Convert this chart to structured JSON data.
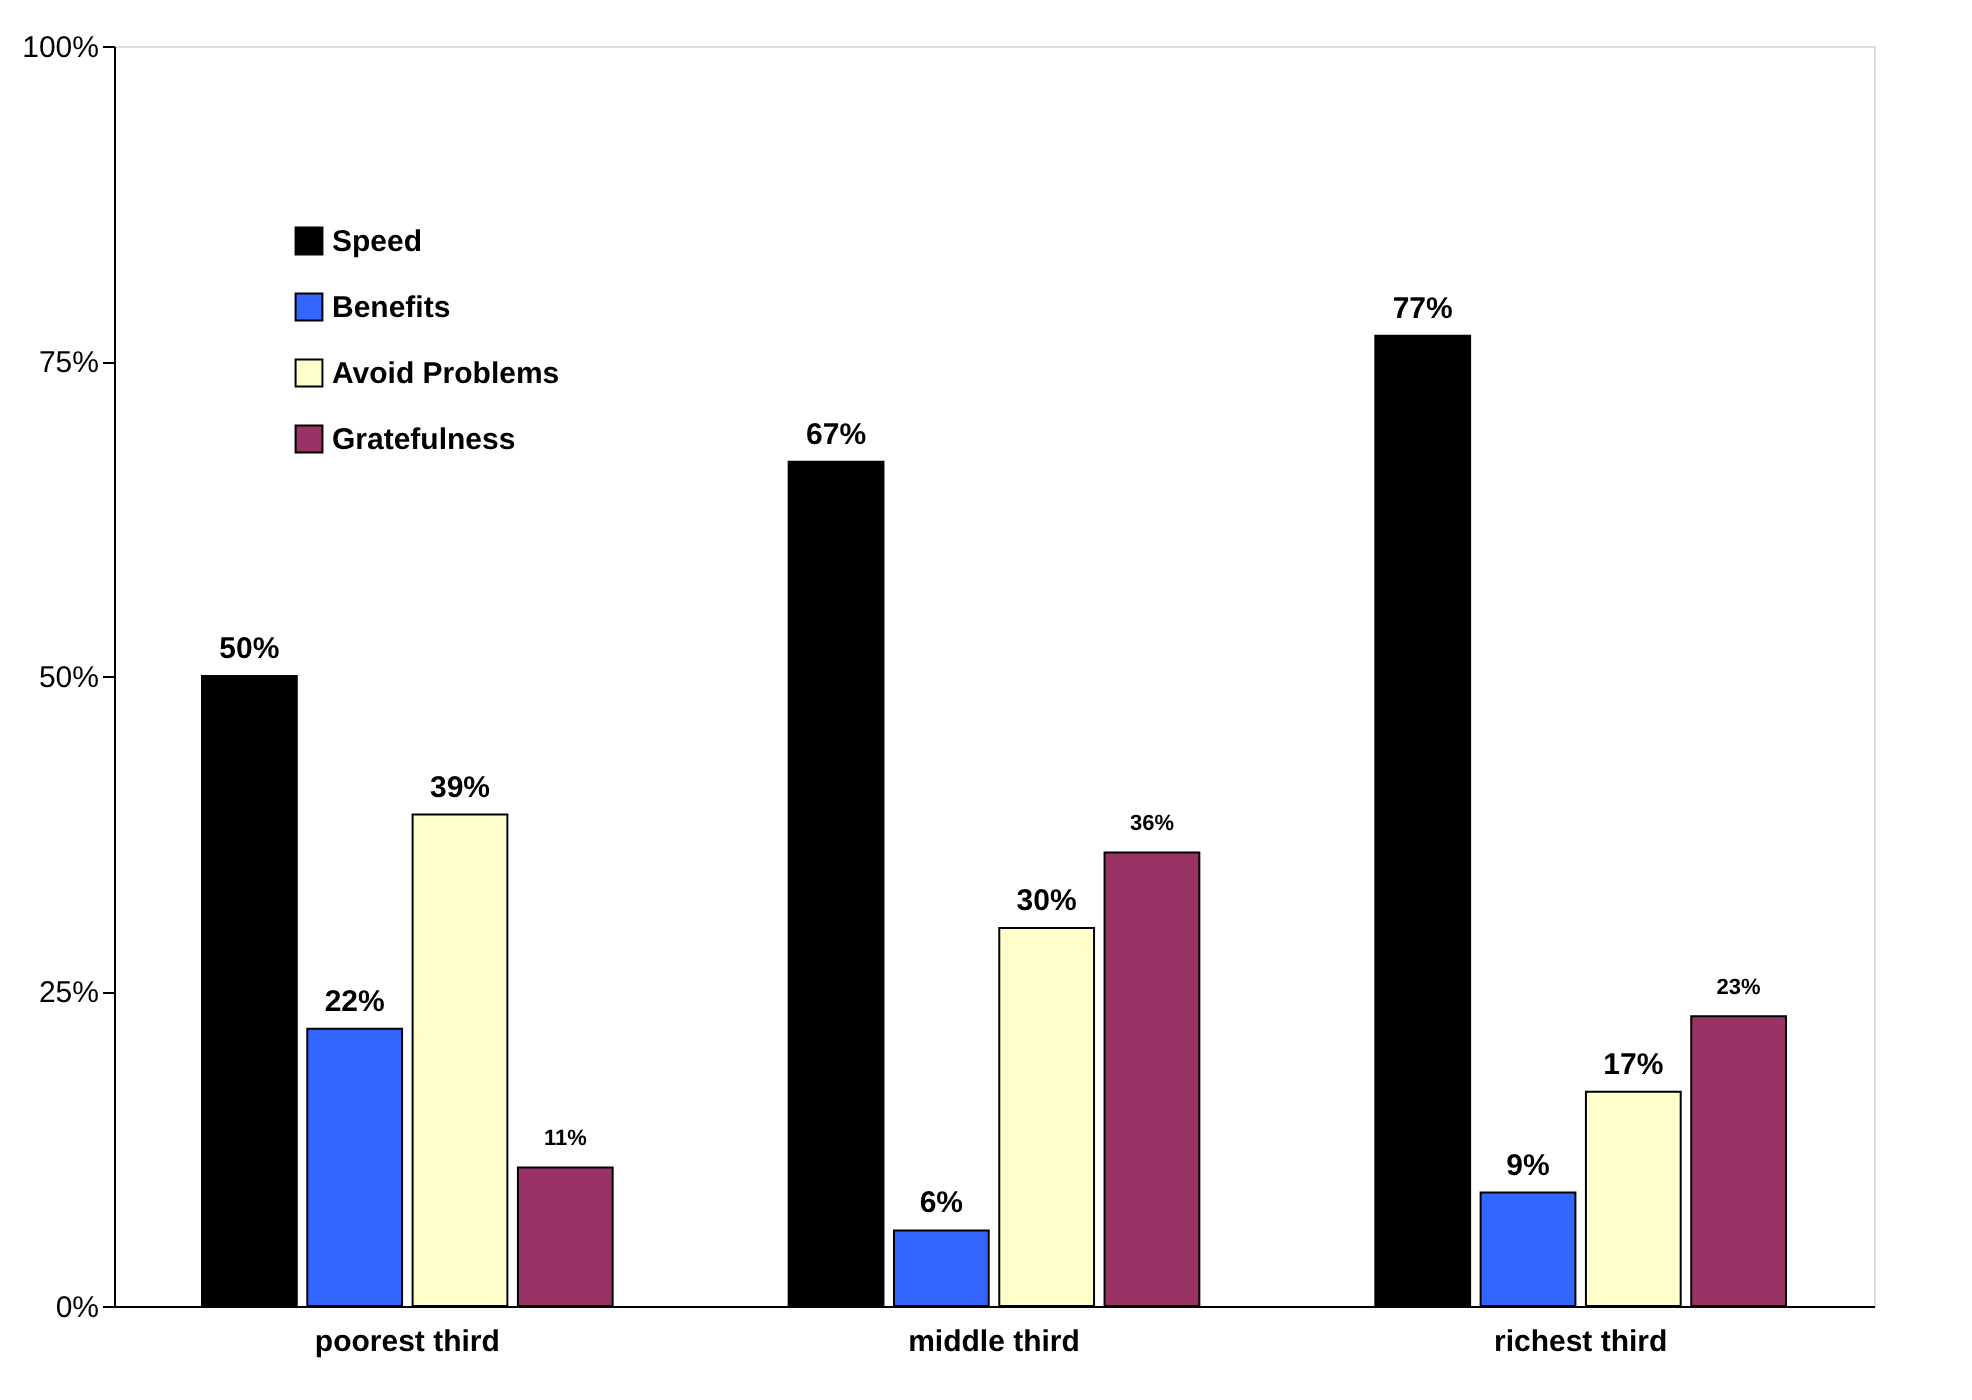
{
  "chart_data": {
    "type": "bar",
    "categories": [
      "poorest third",
      "middle third",
      "richest third"
    ],
    "series": [
      {
        "name": "Speed",
        "color": "#000000",
        "values": [
          50,
          67,
          77
        ],
        "value_labels": [
          "50%",
          "67%",
          "77%"
        ]
      },
      {
        "name": "Benefits",
        "color": "#3366ff",
        "values": [
          22,
          6,
          9
        ],
        "value_labels": [
          "22%",
          "6%",
          "9%"
        ]
      },
      {
        "name": "Avoid Problems",
        "color": "#ffffcc",
        "values": [
          39,
          30,
          17
        ],
        "value_labels": [
          "39%",
          "30%",
          "17%"
        ]
      },
      {
        "name": "Gratefulness",
        "color": "#993366",
        "values": [
          11,
          36,
          23
        ],
        "value_labels": [
          "11%",
          "36%",
          "23%"
        ]
      }
    ],
    "ylim": [
      0,
      100
    ],
    "yticks": [
      {
        "value": 0,
        "label": "0%"
      },
      {
        "value": 25,
        "label": "25%"
      },
      {
        "value": 50,
        "label": "50%"
      },
      {
        "value": 75,
        "label": "75%"
      },
      {
        "value": 100,
        "label": "100%"
      }
    ],
    "legend": "top left",
    "grid": false
  }
}
